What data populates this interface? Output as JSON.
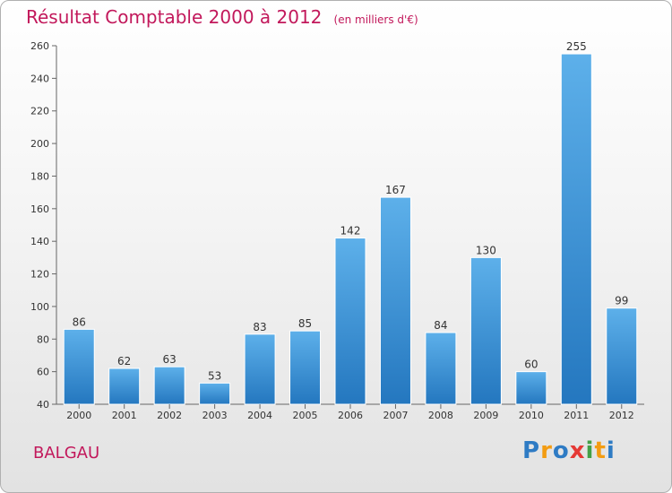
{
  "title": "Résultat Comptable 2000 à 2012",
  "unit_note": "(en milliers d'€)",
  "commune": "BALGAU",
  "logo": {
    "letters": [
      "P",
      "r",
      "o",
      "x",
      "i",
      "t",
      "i"
    ],
    "colors": [
      "#2e7bc4",
      "#f39c12",
      "#2e7bc4",
      "#e53935",
      "#43a047",
      "#f39c12",
      "#2e7bc4"
    ]
  },
  "colors": {
    "title": "#c2185b",
    "bar": "#3f97da",
    "bar_light": "#5db0ea",
    "bar_dark": "#2477bf"
  },
  "chart_data": {
    "type": "bar",
    "categories": [
      "2000",
      "2001",
      "2002",
      "2003",
      "2004",
      "2005",
      "2006",
      "2007",
      "2008",
      "2009",
      "2010",
      "2011",
      "2012"
    ],
    "values": [
      86,
      62,
      63,
      53,
      83,
      85,
      142,
      167,
      84,
      130,
      60,
      255,
      99
    ],
    "ylim": [
      40,
      260
    ],
    "yticks": [
      40,
      60,
      80,
      100,
      120,
      140,
      160,
      180,
      200,
      220,
      240,
      260
    ],
    "grid": false,
    "data_labels": true
  }
}
